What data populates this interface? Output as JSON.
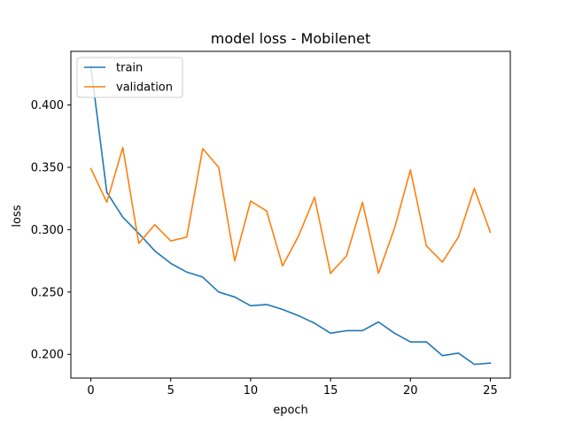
{
  "chart_data": {
    "type": "line",
    "title": "model loss - Mobilenet",
    "xlabel": "epoch",
    "ylabel": "loss",
    "x": [
      0,
      1,
      2,
      3,
      4,
      5,
      6,
      7,
      8,
      9,
      10,
      11,
      12,
      13,
      14,
      15,
      16,
      17,
      18,
      19,
      20,
      21,
      22,
      23,
      24,
      25
    ],
    "xlim": [
      -1.25,
      26.25
    ],
    "ylim": [
      0.181,
      0.443
    ],
    "xticks": [
      0,
      5,
      10,
      15,
      20,
      25
    ],
    "yticks": [
      0.2,
      0.25,
      0.3,
      0.35,
      0.4
    ],
    "xtick_labels": [
      "0",
      "5",
      "10",
      "15",
      "20",
      "25"
    ],
    "ytick_labels": [
      "0.200",
      "0.250",
      "0.300",
      "0.350",
      "0.400"
    ],
    "grid": false,
    "legend_position": "top-left",
    "series": [
      {
        "name": "train",
        "color": "#1f77b4",
        "values": [
          0.431,
          0.33,
          0.31,
          0.297,
          0.283,
          0.273,
          0.266,
          0.262,
          0.25,
          0.246,
          0.239,
          0.24,
          0.236,
          0.231,
          0.225,
          0.217,
          0.219,
          0.219,
          0.226,
          0.217,
          0.21,
          0.21,
          0.199,
          0.201,
          0.192,
          0.193
        ]
      },
      {
        "name": "validation",
        "color": "#ff7f0e",
        "values": [
          0.349,
          0.322,
          0.366,
          0.289,
          0.304,
          0.291,
          0.294,
          0.365,
          0.35,
          0.275,
          0.323,
          0.315,
          0.271,
          0.295,
          0.326,
          0.265,
          0.279,
          0.322,
          0.265,
          0.301,
          0.348,
          0.287,
          0.274,
          0.294,
          0.333,
          0.298
        ]
      }
    ]
  }
}
